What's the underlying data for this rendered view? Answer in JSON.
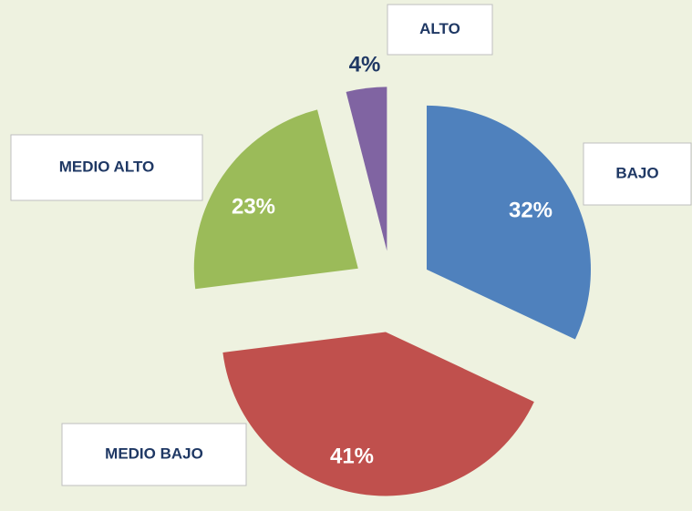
{
  "chart_data": {
    "type": "pie",
    "categories": [
      "BAJO",
      "MEDIO BAJO",
      "MEDIO ALTO",
      "ALTO"
    ],
    "values": [
      32,
      41,
      23,
      4
    ],
    "value_labels": [
      "32%",
      "41%",
      "23%",
      "4%"
    ],
    "colors": [
      "#4f81bd",
      "#c0504d",
      "#9bbb59",
      "#8064a2"
    ]
  }
}
